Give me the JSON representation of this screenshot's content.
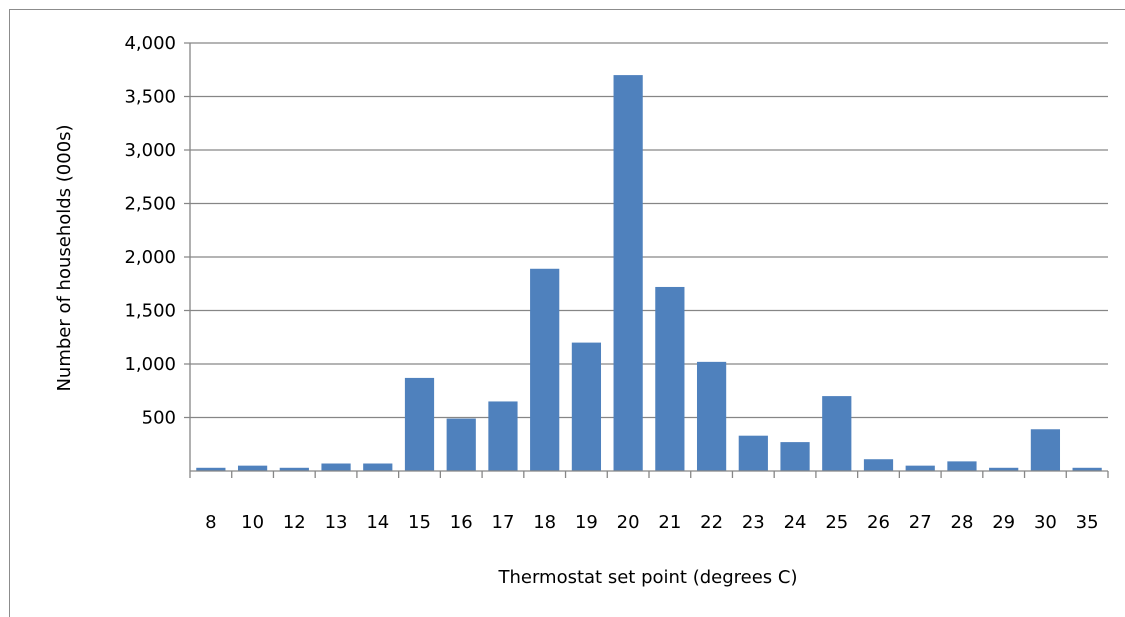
{
  "chart_data": {
    "type": "bar",
    "categories": [
      "8",
      "10",
      "12",
      "13",
      "14",
      "15",
      "16",
      "17",
      "18",
      "19",
      "20",
      "21",
      "22",
      "23",
      "24",
      "25",
      "26",
      "27",
      "28",
      "29",
      "30",
      "35"
    ],
    "values": [
      30,
      50,
      30,
      70,
      70,
      870,
      490,
      650,
      1890,
      1200,
      3700,
      1720,
      1020,
      330,
      270,
      700,
      110,
      50,
      90,
      30,
      390,
      30
    ],
    "xlabel": "Thermostat set point (degrees C)",
    "ylabel": "Number of households (000s)",
    "ylim": [
      0,
      4000
    ],
    "yticks": [
      0,
      500,
      1000,
      1500,
      2000,
      2500,
      3000,
      3500,
      4000
    ],
    "ytick_labels": [
      "",
      "500",
      "1,000",
      "1,500",
      "2,000",
      "2,500",
      "3,000",
      "3,500",
      "4,000"
    ],
    "grid": true,
    "legend": false,
    "bar_color": "#4f81bd",
    "grid_color": "#868686"
  }
}
